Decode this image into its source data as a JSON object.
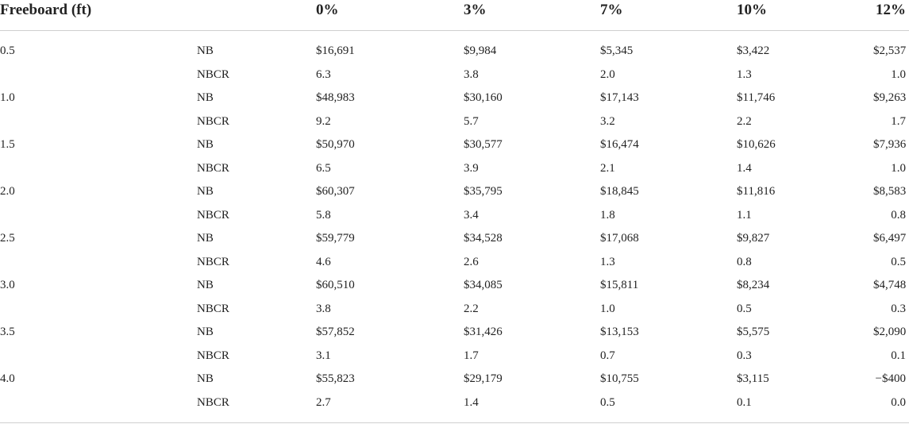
{
  "table": {
    "header": {
      "col0": "Freeboard (ft)",
      "col1": "",
      "rates": [
        "0%",
        "3%",
        "7%",
        "10%",
        "12%"
      ]
    },
    "rows": [
      {
        "freeboard": "0.5",
        "metric": "NB",
        "values": [
          "$16,691",
          "$9,984",
          "$5,345",
          "$3,422",
          "$2,537"
        ]
      },
      {
        "freeboard": "",
        "metric": "NBCR",
        "values": [
          "6.3",
          "3.8",
          "2.0",
          "1.3",
          "1.0"
        ]
      },
      {
        "freeboard": "1.0",
        "metric": "NB",
        "values": [
          "$48,983",
          "$30,160",
          "$17,143",
          "$11,746",
          "$9,263"
        ]
      },
      {
        "freeboard": "",
        "metric": "NBCR",
        "values": [
          "9.2",
          "5.7",
          "3.2",
          "2.2",
          "1.7"
        ]
      },
      {
        "freeboard": "1.5",
        "metric": "NB",
        "values": [
          "$50,970",
          "$30,577",
          "$16,474",
          "$10,626",
          "$7,936"
        ]
      },
      {
        "freeboard": "",
        "metric": "NBCR",
        "values": [
          "6.5",
          "3.9",
          "2.1",
          "1.4",
          "1.0"
        ]
      },
      {
        "freeboard": "2.0",
        "metric": "NB",
        "values": [
          "$60,307",
          "$35,795",
          "$18,845",
          "$11,816",
          "$8,583"
        ]
      },
      {
        "freeboard": "",
        "metric": "NBCR",
        "values": [
          "5.8",
          "3.4",
          "1.8",
          "1.1",
          "0.8"
        ]
      },
      {
        "freeboard": "2.5",
        "metric": "NB",
        "values": [
          "$59,779",
          "$34,528",
          "$17,068",
          "$9,827",
          "$6,497"
        ]
      },
      {
        "freeboard": "",
        "metric": "NBCR",
        "values": [
          "4.6",
          "2.6",
          "1.3",
          "0.8",
          "0.5"
        ]
      },
      {
        "freeboard": "3.0",
        "metric": "NB",
        "values": [
          "$60,510",
          "$34,085",
          "$15,811",
          "$8,234",
          "$4,748"
        ]
      },
      {
        "freeboard": "",
        "metric": "NBCR",
        "values": [
          "3.8",
          "2.2",
          "1.0",
          "0.5",
          "0.3"
        ]
      },
      {
        "freeboard": "3.5",
        "metric": "NB",
        "values": [
          "$57,852",
          "$31,426",
          "$13,153",
          "$5,575",
          "$2,090"
        ]
      },
      {
        "freeboard": "",
        "metric": "NBCR",
        "values": [
          "3.1",
          "1.7",
          "0.7",
          "0.3",
          "0.1"
        ]
      },
      {
        "freeboard": "4.0",
        "metric": "NB",
        "values": [
          "$55,823",
          "$29,179",
          "$10,755",
          "$3,115",
          "−$400"
        ]
      },
      {
        "freeboard": "",
        "metric": "NBCR",
        "values": [
          "2.7",
          "1.4",
          "0.5",
          "0.1",
          "0.0"
        ]
      }
    ]
  }
}
